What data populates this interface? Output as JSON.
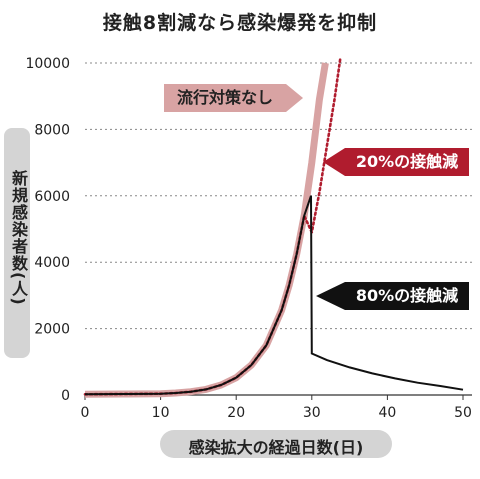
{
  "title": "接触8割減なら感染爆発を抑制",
  "chart_data": {
    "type": "line",
    "title": "接触8割減なら感染爆発を抑制",
    "xlabel": "感染拡大の経過日数(日)",
    "ylabel": "新規感染者数(人)",
    "xlim": [
      0,
      50
    ],
    "ylim": [
      0,
      10000
    ],
    "x_ticks": [
      "0",
      "10",
      "20",
      "30",
      "40",
      "50"
    ],
    "y_ticks": [
      "0",
      "2000",
      "4000",
      "6000",
      "8000",
      "10000"
    ],
    "grid": "horizontal dotted",
    "series": [
      {
        "name": "流行対策なし",
        "color": "#d8a3a3",
        "style": "thick solid",
        "x": [
          0,
          5,
          10,
          12,
          14,
          16,
          18,
          20,
          22,
          24,
          26,
          27,
          28,
          29,
          30,
          31,
          31.8
        ],
        "y": [
          20,
          30,
          40,
          60,
          100,
          170,
          300,
          520,
          900,
          1500,
          2550,
          3300,
          4250,
          5400,
          7000,
          8900,
          10000
        ]
      },
      {
        "name": "20%の接触減",
        "color": "#b01c2e",
        "style": "dotted",
        "x": [
          0,
          5,
          10,
          12,
          14,
          16,
          18,
          20,
          22,
          24,
          26,
          27,
          28,
          29,
          30,
          31,
          32,
          33,
          33.8
        ],
        "y": [
          20,
          30,
          40,
          60,
          100,
          170,
          300,
          520,
          900,
          1500,
          2550,
          3300,
          4250,
          5400,
          4900,
          6100,
          7500,
          8900,
          10200
        ]
      },
      {
        "name": "80%の接触減",
        "color": "#111111",
        "style": "solid",
        "x": [
          0,
          5,
          10,
          12,
          14,
          16,
          18,
          20,
          22,
          24,
          26,
          27,
          28,
          29,
          29.9,
          30,
          32,
          35,
          38,
          41,
          44,
          47,
          50
        ],
        "y": [
          20,
          30,
          40,
          60,
          100,
          170,
          300,
          520,
          900,
          1500,
          2550,
          3300,
          4250,
          5400,
          6000,
          1250,
          1050,
          830,
          650,
          500,
          370,
          270,
          160
        ]
      }
    ],
    "annotations": [
      "流行対策なし",
      "20%の接触減",
      "80%の接触減"
    ]
  },
  "callouts": {
    "none": "流行対策なし",
    "twenty": "20%の接触減",
    "eighty": "80%の接触減"
  },
  "colors": {
    "none": "#d8a3a3",
    "twenty": "#b01c2e",
    "eighty": "#111111",
    "label_bg": "#d4d4d4"
  }
}
